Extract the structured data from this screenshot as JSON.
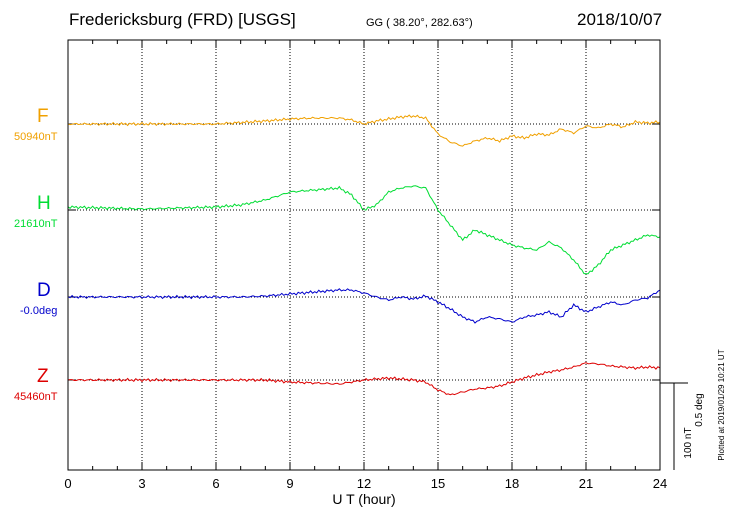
{
  "header": {
    "station": "Fredericksburg (FRD)  [USGS]",
    "coords": "GG ( 38.20°, 282.63°)",
    "date": "2018/10/07"
  },
  "chart_data": {
    "type": "line",
    "xlabel": "U T (hour)",
    "xlim": [
      0,
      24
    ],
    "xticks": [
      "0",
      "3",
      "6",
      "9",
      "12",
      "15",
      "18",
      "21",
      "24"
    ],
    "scale_label": "100 nT",
    "scale_label_deg": "0.5 deg",
    "plotted_note": "Plotted at 2019/01/29 10:21 UT",
    "channels": [
      {
        "name": "F",
        "baseline_label": "50940nT",
        "color": "#f0a000",
        "x": [
          0,
          3,
          6,
          8,
          9,
          10,
          11,
          11.5,
          12,
          12.5,
          13,
          13.5,
          14,
          14.5,
          15,
          15.5,
          16,
          16.5,
          17,
          17.5,
          18,
          18.5,
          19,
          19.5,
          20,
          20.5,
          21,
          21.5,
          22,
          22.5,
          23,
          23.5,
          24
        ],
        "y": [
          0,
          0,
          0,
          3,
          5,
          6,
          6,
          4,
          0,
          3,
          5,
          7,
          8,
          6,
          -10,
          -18,
          -22,
          -17,
          -14,
          -17,
          -12,
          -14,
          -10,
          -11,
          -5,
          -9,
          -2,
          -4,
          0,
          -3,
          2,
          1,
          2
        ]
      },
      {
        "name": "H",
        "baseline_label": "21610nT",
        "color": "#00dd33",
        "x": [
          0,
          3,
          6,
          7,
          8,
          9,
          10,
          11,
          11.5,
          12,
          12.5,
          13,
          13.5,
          14,
          14.5,
          15,
          15.5,
          16,
          16.5,
          17,
          17.5,
          18,
          18.5,
          19,
          19.5,
          20,
          20.5,
          21,
          21.5,
          22,
          22.5,
          23,
          23.5,
          24
        ],
        "y": [
          3,
          1,
          3,
          5,
          10,
          18,
          20,
          22,
          15,
          0,
          5,
          18,
          22,
          24,
          22,
          0,
          -15,
          -30,
          -20,
          -25,
          -30,
          -35,
          -38,
          -40,
          -32,
          -38,
          -50,
          -65,
          -55,
          -40,
          -35,
          -30,
          -25,
          -27
        ]
      },
      {
        "name": "D",
        "baseline_label": "-0.0deg",
        "color": "#0000cc",
        "x": [
          0,
          3,
          6,
          7,
          8,
          9,
          10,
          11,
          11.5,
          12,
          12.5,
          13,
          13.5,
          14,
          14.5,
          15,
          15.5,
          16,
          16.5,
          17,
          17.5,
          18,
          18.5,
          19,
          19.5,
          20,
          20.5,
          21,
          21.5,
          22,
          22.5,
          23,
          23.5,
          24
        ],
        "y": [
          0,
          0,
          0,
          0,
          1,
          3,
          5,
          7,
          7,
          4,
          0,
          -3,
          0,
          -2,
          1,
          -5,
          -12,
          -20,
          -25,
          -20,
          -22,
          -25,
          -20,
          -18,
          -15,
          -20,
          -8,
          -15,
          -10,
          -5,
          -8,
          -3,
          -1,
          7
        ]
      },
      {
        "name": "Z",
        "baseline_label": "45460nT",
        "color": "#dd0000",
        "x": [
          0,
          3,
          6,
          8,
          9,
          10,
          11,
          11.5,
          12,
          12.5,
          13,
          13.5,
          14,
          14.5,
          15,
          15.5,
          16,
          16.5,
          17,
          17.5,
          18,
          18.5,
          19,
          19.5,
          20,
          20.5,
          21,
          21.5,
          22,
          22.5,
          23,
          23.5,
          24
        ],
        "y": [
          0,
          0,
          0,
          0,
          -2,
          -3,
          -4,
          -2,
          0,
          1,
          2,
          1,
          0,
          -2,
          -10,
          -15,
          -12,
          -9,
          -8,
          -6,
          -2,
          2,
          5,
          8,
          10,
          13,
          17,
          16,
          14,
          13,
          12,
          13,
          12
        ]
      }
    ]
  }
}
